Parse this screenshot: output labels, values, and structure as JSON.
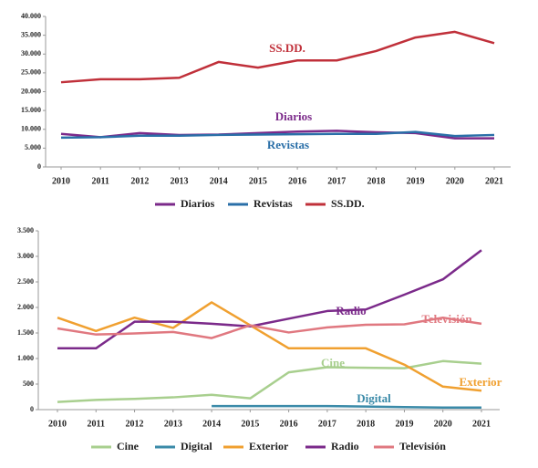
{
  "chart_data": [
    {
      "type": "line",
      "categories": [
        "2010",
        "2011",
        "2012",
        "2013",
        "2014",
        "2015",
        "2016",
        "2017",
        "2018",
        "2019",
        "2020",
        "2021"
      ],
      "ylim": [
        0,
        40000
      ],
      "yticks": [
        0,
        {
          "value": 5000,
          "label": "5.000"
        },
        {
          "value": 10000,
          "label": "10.000"
        },
        {
          "value": 15000,
          "label": "15.000"
        },
        {
          "value": 20000,
          "label": "20.000"
        },
        {
          "value": 25000,
          "label": "25.000"
        },
        {
          "value": 30000,
          "label": "30.000"
        },
        {
          "value": 35000,
          "label": "35.000"
        },
        {
          "value": 40000,
          "label": "40.000"
        }
      ],
      "series": [
        {
          "name": "Diarios",
          "color": "#7b2a8a",
          "values": [
            8800,
            7900,
            9000,
            8500,
            8600,
            9000,
            9400,
            9600,
            9200,
            9000,
            7600,
            7600
          ]
        },
        {
          "name": "Revistas",
          "color": "#2a6fa8",
          "values": [
            7800,
            7900,
            8300,
            8300,
            8500,
            8600,
            8700,
            8800,
            8800,
            9300,
            8200,
            8500
          ]
        },
        {
          "name": "SS.DD.",
          "color": "#c0303a",
          "values": [
            22500,
            23300,
            23300,
            23700,
            27900,
            26400,
            28300,
            28300,
            30800,
            34400,
            35900,
            32900
          ]
        }
      ],
      "annotations": [
        {
          "text": "SS.DD.",
          "color": "#c0303a"
        },
        {
          "text": "Diarios",
          "color": "#7b2a8a"
        },
        {
          "text": "Revistas",
          "color": "#2a6fa8"
        }
      ],
      "legend": "bottom"
    },
    {
      "type": "line",
      "categories": [
        "2010",
        "2011",
        "2012",
        "2013",
        "2014",
        "2015",
        "2016",
        "2017",
        "2018",
        "2019",
        "2020",
        "2021"
      ],
      "ylim": [
        0,
        3500
      ],
      "yticks": [
        0,
        {
          "value": 500,
          "label": "500"
        },
        {
          "value": 1000,
          "label": "1.000"
        },
        {
          "value": 1500,
          "label": "1.500"
        },
        {
          "value": 2000,
          "label": "2.000"
        },
        {
          "value": 2500,
          "label": "2.500"
        },
        {
          "value": 3000,
          "label": "3.000"
        },
        {
          "value": 3500,
          "label": "3.500"
        }
      ],
      "series": [
        {
          "name": "Cine",
          "color": "#a8cf8e",
          "values": [
            150,
            190,
            210,
            240,
            290,
            220,
            730,
            830,
            820,
            810,
            950,
            900
          ]
        },
        {
          "name": "Digital",
          "color": "#3a8aa8",
          "values": [
            null,
            null,
            null,
            null,
            70,
            70,
            70,
            70,
            60,
            50,
            40,
            40
          ]
        },
        {
          "name": "Exterior",
          "color": "#f0a030",
          "values": [
            1800,
            1540,
            1800,
            1600,
            2100,
            1650,
            1200,
            1200,
            1200,
            880,
            450,
            370
          ]
        },
        {
          "name": "Radio",
          "color": "#7b2a8a",
          "values": [
            1200,
            1200,
            1720,
            1720,
            1680,
            1630,
            1780,
            1930,
            1960,
            2250,
            2550,
            3120
          ]
        },
        {
          "name": "Televisión",
          "color": "#e07880",
          "values": [
            1590,
            1470,
            1490,
            1520,
            1400,
            1650,
            1510,
            1610,
            1660,
            1670,
            1800,
            1680
          ]
        }
      ],
      "annotations": [
        {
          "text": "Radio",
          "color": "#7b2a8a"
        },
        {
          "text": "Televisión",
          "color": "#e07880"
        },
        {
          "text": "Cine",
          "color": "#a8cf8e"
        },
        {
          "text": "Exterior",
          "color": "#f0a030"
        },
        {
          "text": "Digital",
          "color": "#3a8aa8"
        }
      ],
      "legend": "bottom"
    }
  ]
}
